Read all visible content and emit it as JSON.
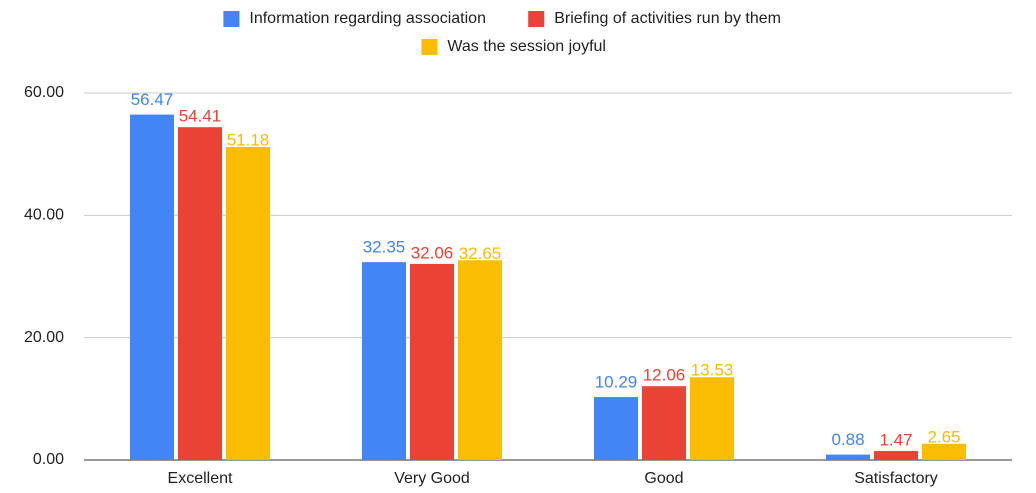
{
  "chart_data": {
    "type": "bar",
    "categories": [
      "Excellent",
      "Very Good",
      "Good",
      "Satisfactory"
    ],
    "series": [
      {
        "name": "Information regarding association",
        "color": "#4285f4",
        "values": [
          56.47,
          32.35,
          10.29,
          0.88
        ]
      },
      {
        "name": "Briefing of activities run by them",
        "color": "#ea4335",
        "values": [
          54.41,
          32.06,
          12.06,
          1.47
        ]
      },
      {
        "name": "Was the session joyful",
        "color": "#fbbc04",
        "values": [
          51.18,
          32.65,
          13.53,
          2.65
        ]
      }
    ],
    "ylim": [
      0,
      60
    ],
    "yticks": [
      {
        "value": 0,
        "label": "0.00"
      },
      {
        "value": 20,
        "label": "20.00"
      },
      {
        "value": 40,
        "label": "40.00"
      },
      {
        "value": 60,
        "label": "60.00"
      }
    ],
    "grid": true,
    "legend": "top"
  }
}
